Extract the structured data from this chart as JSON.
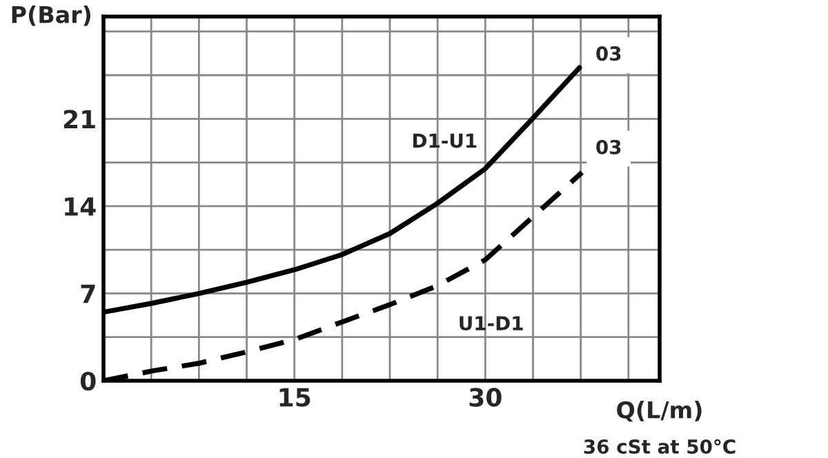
{
  "chart_data": {
    "type": "line",
    "xlabel": "Q(L/m)",
    "ylabel": "P(Bar)",
    "series": [
      {
        "name": "D1-U1",
        "color": "#000000",
        "line_style": "solid",
        "x": [
          0,
          3.75,
          7.5,
          11.25,
          15,
          18.7,
          22.5,
          26.2,
          30,
          33.7,
          37.4
        ],
        "values": [
          5.5,
          6.2,
          7.0,
          7.9,
          8.9,
          10.1,
          11.8,
          14.2,
          17.0,
          21.0,
          25.1
        ]
      },
      {
        "name": "U1-D1",
        "color": "#000000",
        "line_style": "dashed",
        "x": [
          0,
          3.9,
          7.5,
          11.2,
          15,
          18.7,
          22.5,
          26.2,
          30,
          33.7,
          37.6
        ],
        "values": [
          0,
          0.8,
          1.4,
          2.3,
          3.3,
          4.7,
          6.1,
          7.6,
          9.7,
          13.1,
          16.7
        ]
      }
    ],
    "annotations": [
      {
        "text": "03",
        "x": 39.7,
        "y": 26.1
      },
      {
        "text": "03",
        "x": 39.7,
        "y": 18.6
      },
      "36 cSt at 50°C"
    ],
    "xlim": [
      0,
      43.7
    ],
    "ylim": [
      0,
      29.2
    ],
    "xticks": [
      {
        "value": 0,
        "label": null
      },
      {
        "value": 3.75,
        "label": null
      },
      {
        "value": 7.5,
        "label": null
      },
      {
        "value": 11.25,
        "label": null
      },
      15,
      {
        "value": 18.75,
        "label": null
      },
      {
        "value": 22.5,
        "label": null
      },
      {
        "value": 26.25,
        "label": null
      },
      30,
      {
        "value": 33.75,
        "label": null
      },
      {
        "value": 37.5,
        "label": null
      },
      {
        "value": 41.25,
        "label": null
      }
    ],
    "yticks": [
      0,
      {
        "value": 3.5,
        "label": null
      },
      7,
      {
        "value": 10.5,
        "label": null
      },
      14,
      {
        "value": 17.5,
        "label": null
      },
      21,
      {
        "value": 24.5,
        "label": null
      },
      {
        "value": 28,
        "label": null
      }
    ],
    "grid": true,
    "legend": false,
    "marker": "none"
  }
}
